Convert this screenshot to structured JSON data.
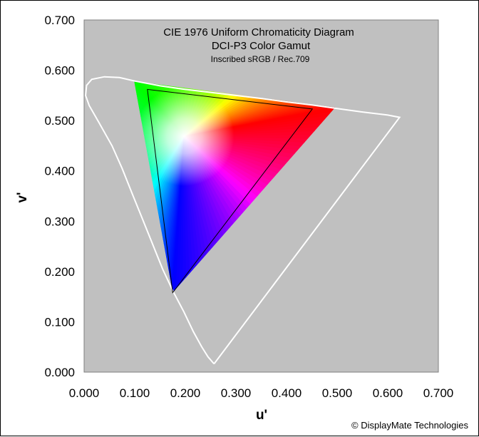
{
  "chart_data": {
    "type": "scatter",
    "title": "CIE 1976 Uniform Chromaticity Diagram",
    "subtitle": "DCI-P3 Color Gamut",
    "subtitle2": "Inscribed sRGB / Rec.709",
    "xlabel": "u'",
    "ylabel": "v'",
    "xlim": [
      0,
      0.7
    ],
    "ylim": [
      0,
      0.7
    ],
    "xticks": [
      "0.000",
      "0.100",
      "0.200",
      "0.300",
      "0.400",
      "0.500",
      "0.600",
      "0.700"
    ],
    "yticks": [
      "0.000",
      "0.100",
      "0.200",
      "0.300",
      "0.400",
      "0.500",
      "0.600",
      "0.700"
    ],
    "grid": false,
    "plot_background": "#c0c0c0",
    "spectral_locus": {
      "color": "#ffffff",
      "points": [
        [
          0.2568,
          0.0165
        ],
        [
          0.2448,
          0.0305
        ],
        [
          0.2323,
          0.0505
        ],
        [
          0.216,
          0.08
        ],
        [
          0.197,
          0.12
        ],
        [
          0.176,
          0.16
        ],
        [
          0.155,
          0.205
        ],
        [
          0.135,
          0.255
        ],
        [
          0.115,
          0.305
        ],
        [
          0.095,
          0.355
        ],
        [
          0.075,
          0.405
        ],
        [
          0.055,
          0.45
        ],
        [
          0.03,
          0.495
        ],
        [
          0.01,
          0.53
        ],
        [
          0.003,
          0.55
        ],
        [
          0.005,
          0.57
        ],
        [
          0.015,
          0.582
        ],
        [
          0.04,
          0.587
        ],
        [
          0.07,
          0.5855
        ],
        [
          0.1,
          0.5785
        ],
        [
          0.15,
          0.569
        ],
        [
          0.2,
          0.562
        ],
        [
          0.25,
          0.556
        ],
        [
          0.3,
          0.55
        ],
        [
          0.35,
          0.544
        ],
        [
          0.4,
          0.537
        ],
        [
          0.45,
          0.531
        ],
        [
          0.5,
          0.524
        ],
        [
          0.55,
          0.517
        ],
        [
          0.6,
          0.511
        ],
        [
          0.6234,
          0.5065
        ]
      ]
    },
    "gamuts": [
      {
        "id": "dci-p3",
        "points": {
          "red": [
            0.496,
            0.526
          ],
          "green": [
            0.099,
            0.578
          ],
          "blue": [
            0.175,
            0.158
          ]
        },
        "white": [
          0.198,
          0.469
        ]
      },
      {
        "id": "srgb",
        "color": "#000000",
        "points": {
          "red": [
            0.451,
            0.523
          ],
          "green": [
            0.125,
            0.562
          ],
          "blue": [
            0.175,
            0.158
          ]
        }
      }
    ]
  },
  "copyright": "© DisplayMate Technologies"
}
